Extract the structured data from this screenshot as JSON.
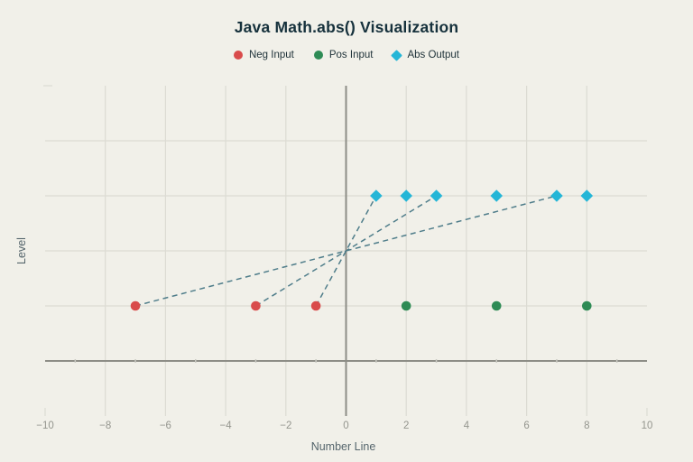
{
  "page": {
    "background": "#f1f0e9",
    "grid_color": "#dcdbd3",
    "zero_line_color": "#8d8d86",
    "tick_label_color": "#94958e",
    "axis_title_color": "#55656c",
    "title_color": "#16313c"
  },
  "chart_data": {
    "type": "scatter",
    "title": "Java Math.abs() Visualization",
    "xlabel": "Number Line",
    "ylabel": "Level",
    "xlim": [
      -10,
      10
    ],
    "ylim": [
      -1,
      5
    ],
    "x_ticks": [
      -10,
      -8,
      -6,
      -4,
      -2,
      0,
      2,
      4,
      6,
      8,
      10
    ],
    "x_tick_labels": [
      "−10",
      "−8",
      "−6",
      "−4",
      "−2",
      "0",
      "2",
      "4",
      "6",
      "8",
      "10"
    ],
    "x_minor_ticks": [
      -9,
      -7,
      -5,
      -3,
      -1,
      1,
      3,
      5,
      7,
      9
    ],
    "grid": {
      "vertical_at": [
        -8,
        -6,
        -4,
        -2,
        2,
        4,
        6,
        8
      ],
      "horizontal_at": [
        1,
        2,
        3,
        4
      ],
      "zero_lines": true,
      "y_tick_labels_shown": false
    },
    "legend_position": "top-center",
    "series": [
      {
        "name": "Neg Input",
        "marker": "circle",
        "color": "#d94b4b",
        "points": [
          {
            "x": -7,
            "y": 1
          },
          {
            "x": -3,
            "y": 1
          },
          {
            "x": -1,
            "y": 1
          }
        ]
      },
      {
        "name": "Pos Input",
        "marker": "circle",
        "color": "#2e8b55",
        "points": [
          {
            "x": 2,
            "y": 1
          },
          {
            "x": 5,
            "y": 1
          },
          {
            "x": 8,
            "y": 1
          }
        ]
      },
      {
        "name": "Abs Output",
        "marker": "diamond",
        "color": "#25b6d7",
        "points": [
          {
            "x": 1,
            "y": 3
          },
          {
            "x": 2,
            "y": 3
          },
          {
            "x": 3,
            "y": 3
          },
          {
            "x": 5,
            "y": 3
          },
          {
            "x": 7,
            "y": 3
          },
          {
            "x": 8,
            "y": 3
          }
        ]
      }
    ],
    "connectors": [
      {
        "from": {
          "x": -7,
          "y": 1
        },
        "to": {
          "x": 7,
          "y": 3
        },
        "style": "dashed",
        "color": "#4f7d8a"
      },
      {
        "from": {
          "x": -3,
          "y": 1
        },
        "to": {
          "x": 3,
          "y": 3
        },
        "style": "dashed",
        "color": "#4f7d8a"
      },
      {
        "from": {
          "x": -1,
          "y": 1
        },
        "to": {
          "x": 1,
          "y": 3
        },
        "style": "dashed",
        "color": "#4f7d8a"
      }
    ]
  }
}
